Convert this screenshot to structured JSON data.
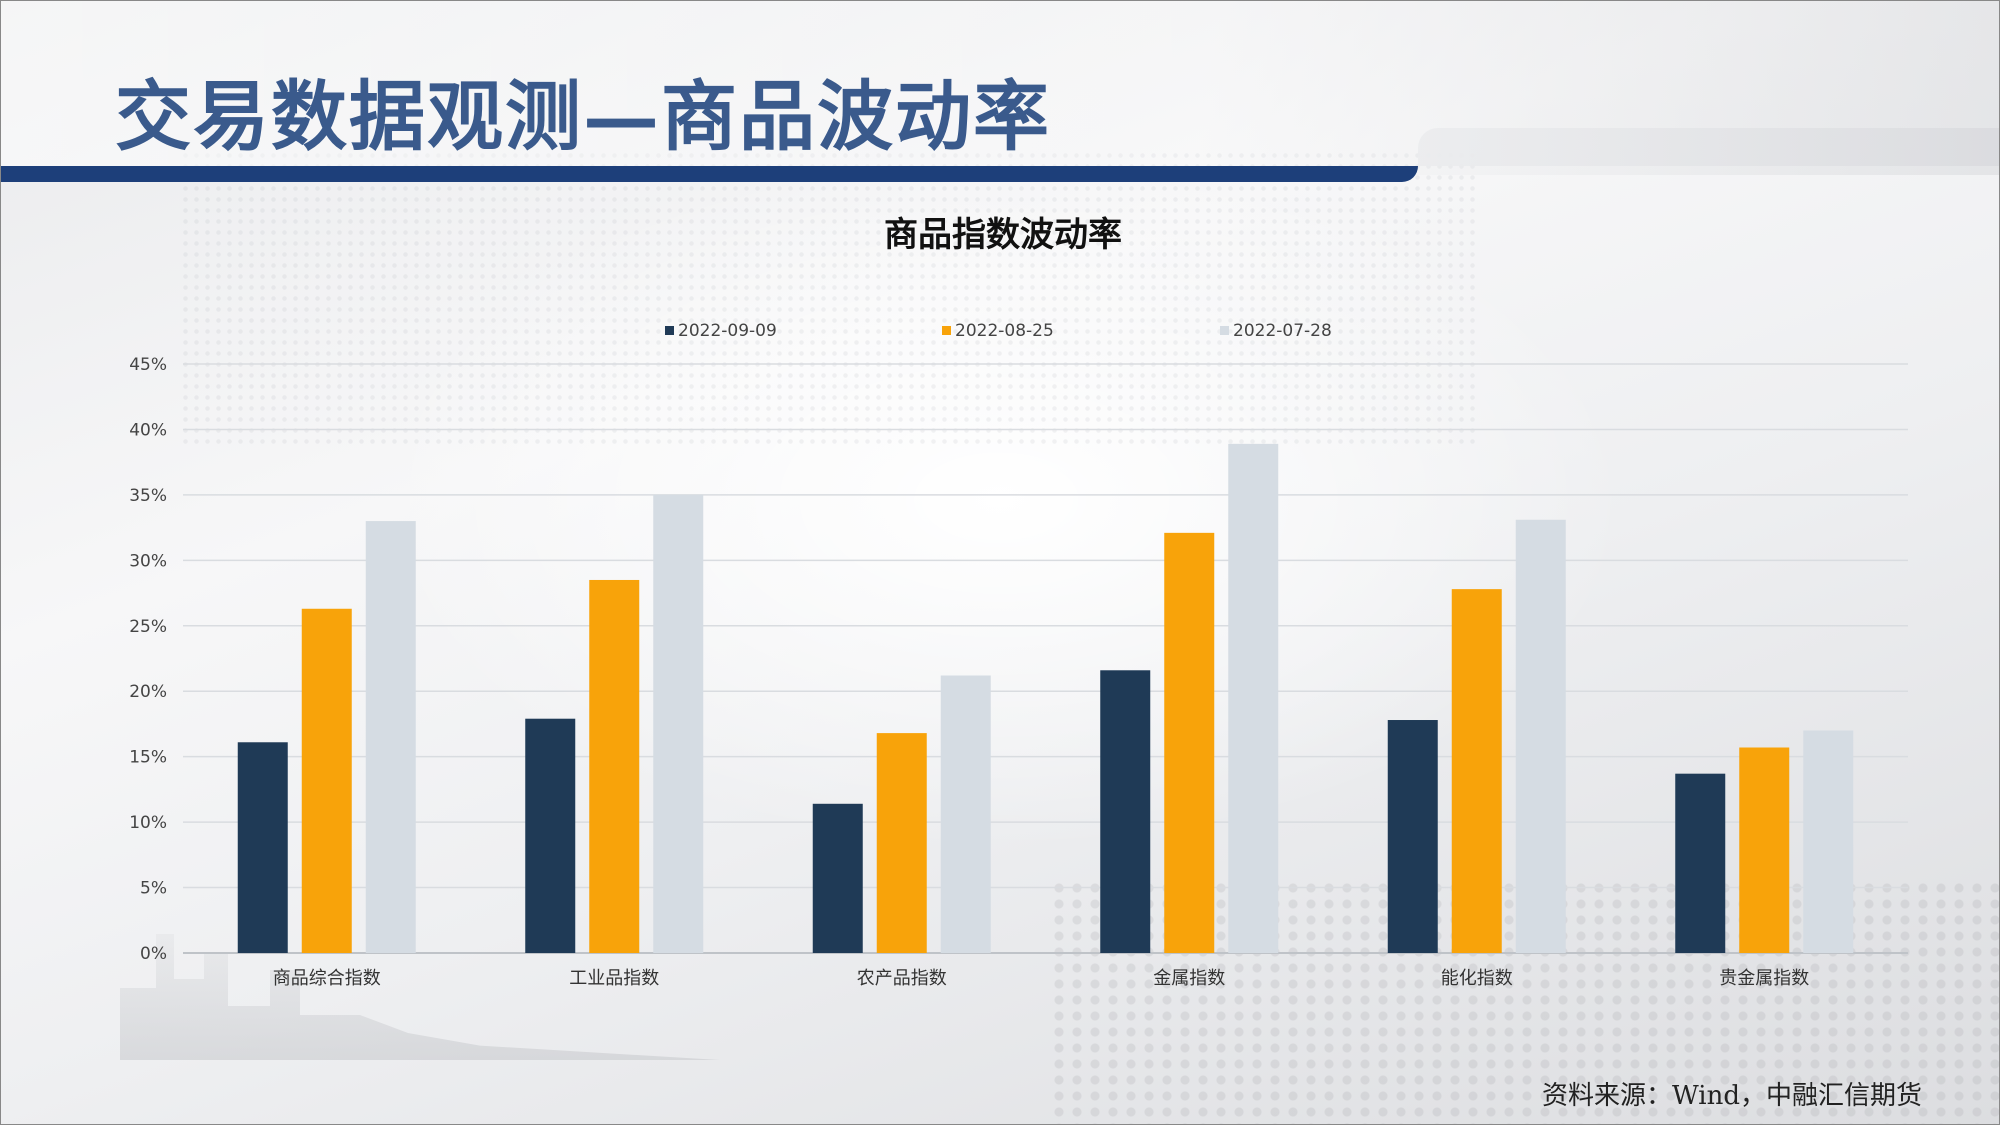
{
  "slide": {
    "title": "交易数据观测—商品波动率",
    "source": "资料来源：Wind，中融汇信期货"
  },
  "colors": {
    "series": [
      "#1f3a56",
      "#f8a30a",
      "#d5dce3"
    ],
    "title": "#3a5a8c",
    "title_bar": "#1d3f7a"
  },
  "chart_data": {
    "type": "bar",
    "title": "商品指数波动率",
    "categories": [
      "商品综合指数",
      "工业品指数",
      "农产品指数",
      "金属指数",
      "能化指数",
      "贵金属指数"
    ],
    "series": [
      {
        "name": "2022-09-09",
        "values": [
          16.1,
          17.9,
          11.4,
          21.6,
          17.8,
          13.7
        ]
      },
      {
        "name": "2022-08-25",
        "values": [
          26.3,
          28.5,
          16.8,
          32.1,
          27.8,
          15.7
        ]
      },
      {
        "name": "2022-07-28",
        "values": [
          33.0,
          35.0,
          21.2,
          38.9,
          33.1,
          17.0
        ]
      }
    ],
    "ylim": [
      0,
      45
    ],
    "yticks": [
      0,
      5,
      10,
      15,
      20,
      25,
      30,
      35,
      40,
      45
    ],
    "ytick_labels": [
      "0%",
      "5%",
      "10%",
      "15%",
      "20%",
      "25%",
      "30%",
      "35%",
      "40%",
      "45%"
    ],
    "xlabel": "",
    "ylabel": "",
    "grid": true,
    "legend": "top-center"
  }
}
